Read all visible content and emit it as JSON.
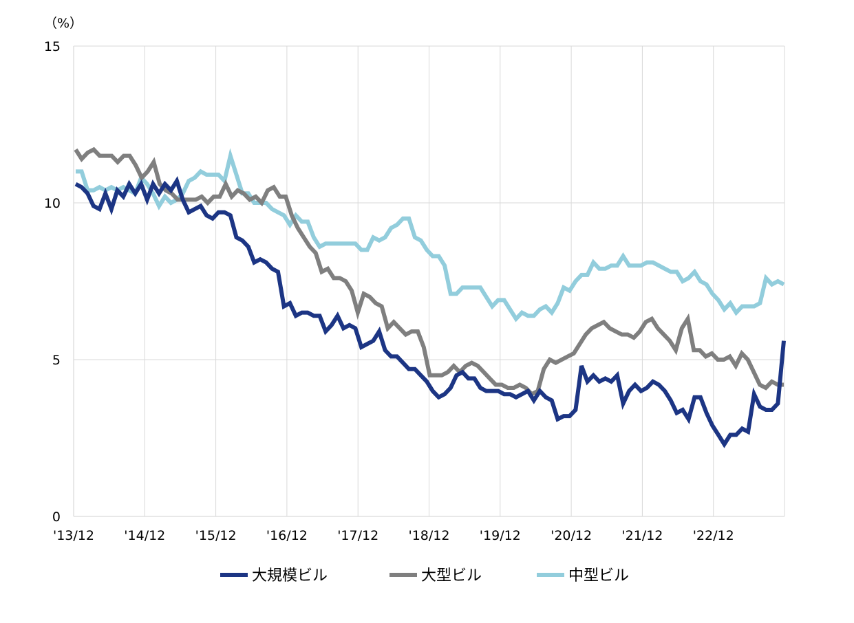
{
  "chart_data": {
    "type": "line",
    "unit_label": "（%）",
    "ylim": [
      0,
      15
    ],
    "yticks": [
      0,
      5,
      10,
      15
    ],
    "x_tick_labels": [
      "'13/12",
      "'14/12",
      "'15/12",
      "'16/12",
      "'17/12",
      "'18/12",
      "'19/12",
      "'20/12",
      "'21/12",
      "'22/12"
    ],
    "grid": true,
    "legend_position": "bottom",
    "series": [
      {
        "name": "大規模ビル",
        "color": "#1c3584",
        "values": [
          10.6,
          10.5,
          10.3,
          9.9,
          9.8,
          10.3,
          9.8,
          10.4,
          10.2,
          10.6,
          10.3,
          10.6,
          10.1,
          10.6,
          10.3,
          10.6,
          10.4,
          10.7,
          10.1,
          9.7,
          9.8,
          9.9,
          9.6,
          9.5,
          9.7,
          9.7,
          9.6,
          8.9,
          8.8,
          8.6,
          8.1,
          8.2,
          8.1,
          7.9,
          7.8,
          6.7,
          6.8,
          6.4,
          6.5,
          6.5,
          6.4,
          6.4,
          5.9,
          6.1,
          6.4,
          6.0,
          6.1,
          6.0,
          5.4,
          5.5,
          5.6,
          5.9,
          5.3,
          5.1,
          5.1,
          4.9,
          4.7,
          4.7,
          4.5,
          4.3,
          4.0,
          3.8,
          3.9,
          4.1,
          4.5,
          4.6,
          4.4,
          4.4,
          4.1,
          4.0,
          4.0,
          4.0,
          3.9,
          3.9,
          3.8,
          3.9,
          4.0,
          3.7,
          4.0,
          3.8,
          3.7,
          3.1,
          3.2,
          3.2,
          3.4,
          4.8,
          4.3,
          4.5,
          4.3,
          4.4,
          4.3,
          4.5,
          3.6,
          4.0,
          4.2,
          4.0,
          4.1,
          4.3,
          4.2,
          4.0,
          3.7,
          3.3,
          3.4,
          3.1,
          3.8,
          3.8,
          3.3,
          2.9,
          2.6,
          2.3,
          2.6,
          2.6,
          2.8,
          2.7,
          3.9,
          3.5,
          3.4,
          3.4,
          3.6,
          5.6
        ]
      },
      {
        "name": "大型ビル",
        "color": "#7f7f7f",
        "values": [
          11.7,
          11.4,
          11.6,
          11.7,
          11.5,
          11.5,
          11.5,
          11.3,
          11.5,
          11.5,
          11.2,
          10.8,
          11.0,
          11.3,
          10.6,
          10.4,
          10.3,
          10.1,
          10.1,
          10.1,
          10.1,
          10.2,
          10.0,
          10.2,
          10.2,
          10.6,
          10.2,
          10.4,
          10.3,
          10.1,
          10.2,
          10.0,
          10.4,
          10.5,
          10.2,
          10.2,
          9.6,
          9.2,
          8.9,
          8.6,
          8.4,
          7.8,
          7.9,
          7.6,
          7.6,
          7.5,
          7.2,
          6.5,
          7.1,
          7.0,
          6.8,
          6.7,
          6.0,
          6.2,
          6.0,
          5.8,
          5.9,
          5.9,
          5.4,
          4.5,
          4.5,
          4.5,
          4.6,
          4.8,
          4.6,
          4.8,
          4.9,
          4.8,
          4.6,
          4.4,
          4.2,
          4.2,
          4.1,
          4.1,
          4.2,
          4.1,
          3.9,
          4.0,
          4.7,
          5.0,
          4.9,
          5.0,
          5.1,
          5.2,
          5.5,
          5.8,
          6.0,
          6.1,
          6.2,
          6.0,
          5.9,
          5.8,
          5.8,
          5.7,
          5.9,
          6.2,
          6.3,
          6.0,
          5.8,
          5.6,
          5.3,
          6.0,
          6.3,
          5.3,
          5.3,
          5.1,
          5.2,
          5.0,
          5.0,
          5.1,
          4.8,
          5.2,
          5.0,
          4.6,
          4.2,
          4.1,
          4.3,
          4.2,
          4.2
        ]
      },
      {
        "name": "中型ビル",
        "color": "#92cddc",
        "values": [
          11.0,
          11.0,
          10.4,
          10.4,
          10.5,
          10.4,
          10.5,
          10.4,
          10.5,
          10.4,
          10.3,
          10.8,
          10.6,
          10.3,
          9.9,
          10.2,
          10.0,
          10.1,
          10.3,
          10.7,
          10.8,
          11.0,
          10.9,
          10.9,
          10.9,
          10.7,
          11.5,
          10.9,
          10.3,
          10.3,
          10.0,
          10.0,
          10.0,
          9.8,
          9.7,
          9.6,
          9.3,
          9.6,
          9.4,
          9.4,
          8.9,
          8.6,
          8.7,
          8.7,
          8.7,
          8.7,
          8.7,
          8.7,
          8.5,
          8.5,
          8.9,
          8.8,
          8.9,
          9.2,
          9.3,
          9.5,
          9.5,
          8.9,
          8.8,
          8.5,
          8.3,
          8.3,
          8.0,
          7.1,
          7.1,
          7.3,
          7.3,
          7.3,
          7.3,
          7.0,
          6.7,
          6.9,
          6.9,
          6.6,
          6.3,
          6.5,
          6.4,
          6.4,
          6.6,
          6.7,
          6.5,
          6.8,
          7.3,
          7.2,
          7.5,
          7.7,
          7.7,
          8.1,
          7.9,
          7.9,
          8.0,
          8.0,
          8.3,
          8.0,
          8.0,
          8.0,
          8.1,
          8.1,
          8.0,
          7.9,
          7.8,
          7.8,
          7.5,
          7.6,
          7.8,
          7.5,
          7.4,
          7.1,
          6.9,
          6.6,
          6.8,
          6.5,
          6.7,
          6.7,
          6.7,
          6.8,
          7.6,
          7.4,
          7.5,
          7.4
        ]
      }
    ]
  }
}
